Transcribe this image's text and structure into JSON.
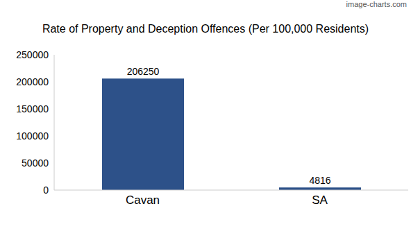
{
  "chart_data": {
    "type": "bar",
    "title": "Rate of Property and Deception Offences (Per 100,000 Residents)",
    "annotations": [
      "image-charts.com"
    ],
    "categories": [
      "Cavan",
      "SA"
    ],
    "values": [
      206250,
      4816
    ],
    "color": "#2d5189",
    "ylim": [
      0,
      250000
    ],
    "yticks": [
      0,
      50000,
      100000,
      150000,
      200000,
      250000
    ],
    "grid": false,
    "data_labels": true
  }
}
